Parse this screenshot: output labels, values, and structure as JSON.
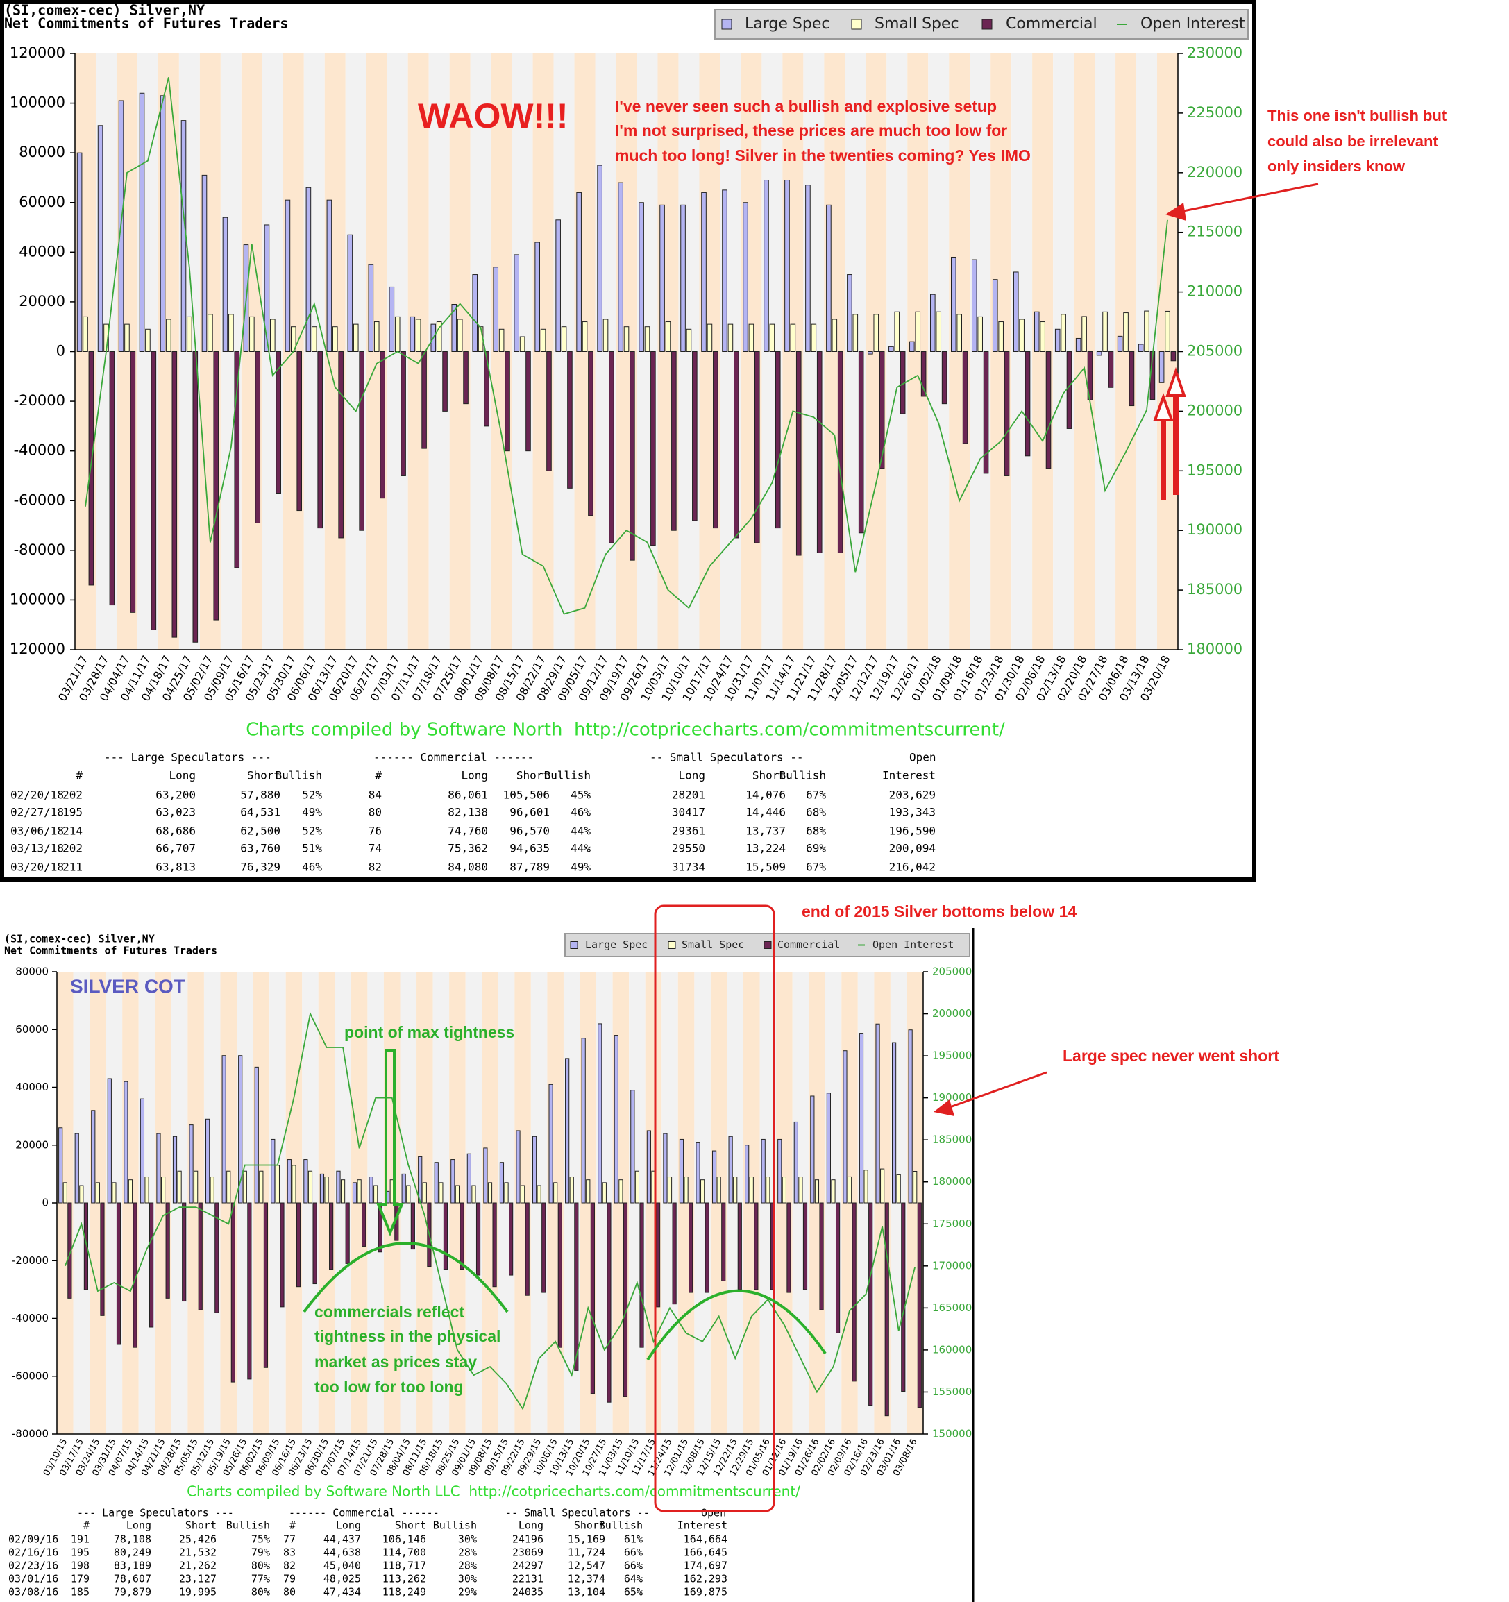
{
  "chart_data": [
    {
      "type": "bar",
      "title": "(SI,comex-cec) Silver,NY",
      "subtitle": "Net Commitments of Futures Traders",
      "categories": [
        "03/21/17",
        "03/28/17",
        "04/04/17",
        "04/11/17",
        "04/18/17",
        "04/25/17",
        "05/02/17",
        "05/09/17",
        "05/16/17",
        "05/23/17",
        "05/30/17",
        "06/06/17",
        "06/13/17",
        "06/20/17",
        "06/27/17",
        "07/03/17",
        "07/11/17",
        "07/18/17",
        "07/25/17",
        "08/01/17",
        "08/08/17",
        "08/15/17",
        "08/22/17",
        "08/29/17",
        "09/05/17",
        "09/12/17",
        "09/19/17",
        "09/26/17",
        "10/03/17",
        "10/10/17",
        "10/17/17",
        "10/24/17",
        "10/31/17",
        "11/07/17",
        "11/14/17",
        "11/21/17",
        "11/28/17",
        "12/05/17",
        "12/12/17",
        "12/19/17",
        "12/26/17",
        "01/02/18",
        "01/09/18",
        "01/16/18",
        "01/23/18",
        "01/30/18",
        "02/06/18",
        "02/13/18",
        "02/20/18",
        "02/27/18",
        "03/06/18",
        "03/13/18",
        "03/20/18"
      ],
      "series": [
        {
          "name": "Large Spec",
          "color": "#b4b4f2",
          "values": [
            80000,
            91000,
            101000,
            104000,
            103000,
            93000,
            71000,
            54000,
            43000,
            51000,
            61000,
            66000,
            61000,
            47000,
            35000,
            26000,
            14000,
            11000,
            19000,
            31000,
            34000,
            39000,
            44000,
            53000,
            64000,
            75000,
            68000,
            60000,
            59000,
            59000,
            64000,
            65000,
            60000,
            69000,
            69000,
            67000,
            59000,
            31000,
            -1000,
            2000,
            4000,
            23000,
            38000,
            37000,
            29000,
            32000,
            16000,
            9000,
            5320,
            -1508,
            6186,
            2947,
            -12516
          ]
        },
        {
          "name": "Small Spec",
          "color": "#ffffcc",
          "values": [
            14000,
            11000,
            11000,
            9000,
            13000,
            14000,
            15000,
            15000,
            14000,
            13000,
            10000,
            10000,
            10000,
            11000,
            12000,
            14000,
            13000,
            12000,
            13000,
            10000,
            9000,
            6000,
            9000,
            10000,
            12000,
            13000,
            10000,
            10000,
            12000,
            9000,
            11000,
            11000,
            11000,
            11000,
            11000,
            11000,
            13000,
            15000,
            15000,
            16000,
            16000,
            16000,
            15000,
            14000,
            12000,
            13000,
            12000,
            15000,
            14125,
            15971,
            15624,
            16326,
            16225
          ]
        },
        {
          "name": "Commercial",
          "color": "#6b2553",
          "values": [
            -94000,
            -102000,
            -105000,
            -112000,
            -115000,
            -117000,
            -108000,
            -87000,
            -69000,
            -57000,
            -64000,
            -71000,
            -75000,
            -72000,
            -59000,
            -50000,
            -39000,
            -24000,
            -21000,
            -30000,
            -40000,
            -40000,
            -48000,
            -55000,
            -66000,
            -77000,
            -84000,
            -78000,
            -72000,
            -68000,
            -71000,
            -75000,
            -77000,
            -71000,
            -82000,
            -81000,
            -81000,
            -73000,
            -47000,
            -25000,
            -18000,
            -21000,
            -37000,
            -49000,
            -50000,
            -42000,
            -47000,
            -31000,
            -19445,
            -14463,
            -21810,
            -19273,
            -3709
          ]
        },
        {
          "name": "Open Interest",
          "color": "#3aa83a",
          "type": "line",
          "axis": "y2",
          "values": [
            192000,
            205000,
            220000,
            221000,
            228000,
            212000,
            189000,
            197000,
            214000,
            203000,
            205000,
            209000,
            202000,
            200000,
            204000,
            205000,
            204000,
            207000,
            209000,
            207000,
            198000,
            188000,
            187000,
            183000,
            183500,
            188000,
            190000,
            189000,
            185000,
            183500,
            187000,
            189000,
            191000,
            194000,
            200000,
            199500,
            198000,
            186500,
            194000,
            202000,
            203000,
            199000,
            192500,
            196000,
            197500,
            200000,
            197500,
            201500,
            203629,
            193343,
            196590,
            200094,
            216042
          ]
        }
      ],
      "ylim": [
        -120000,
        120000
      ],
      "yticks": [
        {
          "value": -120000,
          "label": "120000"
        },
        {
          "value": -100000,
          "label": "100000"
        },
        -80000,
        -60000,
        -40000,
        -20000,
        0,
        20000,
        40000,
        60000,
        80000,
        100000,
        120000
      ],
      "y2lim": [
        180000,
        230000
      ],
      "y2ticks": [
        180000,
        185000,
        190000,
        195000,
        200000,
        205000,
        210000,
        215000,
        220000,
        225000,
        230000
      ],
      "legend": "top-right",
      "footer": "Charts compiled by Software North  http://cotpricecharts.com/commitmentscurrent/",
      "annotations": [
        "WAOW!!!",
        "I've never seen such a bullish and explosive setup",
        "I'm not surprised, these prices are much too low for",
        "much too long! Silver in the twenties coming? Yes IMO",
        "This one isn't bullish but",
        "could also be irrelevant",
        "only insiders know"
      ],
      "table": {
        "groups": [
          "--- Large Speculators ---",
          "------ Commercial ------",
          "-- Small Speculators --",
          "Open"
        ],
        "columns": [
          "#",
          "Long",
          "Short",
          "Bullish",
          "#",
          "Long",
          "Short",
          "Bullish",
          "Long",
          "Short",
          "Bullish",
          "Interest"
        ],
        "rows": [
          [
            "02/20/18",
            "202",
            "63,200",
            "57,880",
            "52%",
            "84",
            "86,061",
            "105,506",
            "45%",
            "28201",
            "14,076",
            "67%",
            "203,629"
          ],
          [
            "02/27/18",
            "195",
            "63,023",
            "64,531",
            "49%",
            "80",
            "82,138",
            "96,601",
            "46%",
            "30417",
            "14,446",
            "68%",
            "193,343"
          ],
          [
            "03/06/18",
            "214",
            "68,686",
            "62,500",
            "52%",
            "76",
            "74,760",
            "96,570",
            "44%",
            "29361",
            "13,737",
            "68%",
            "196,590"
          ],
          [
            "03/13/18",
            "202",
            "66,707",
            "63,760",
            "51%",
            "74",
            "75,362",
            "94,635",
            "44%",
            "29550",
            "13,224",
            "69%",
            "200,094"
          ],
          [
            "03/20/18",
            "211",
            "63,813",
            "76,329",
            "46%",
            "82",
            "84,080",
            "87,789",
            "49%",
            "31734",
            "15,509",
            "67%",
            "216,042"
          ]
        ]
      }
    },
    {
      "type": "bar",
      "title": "(SI,comex-cec) Silver,NY",
      "subtitle": "Net Commitments of Futures Traders",
      "categories": [
        "03/10/15",
        "03/17/15",
        "03/24/15",
        "03/31/15",
        "04/07/15",
        "04/14/15",
        "04/21/15",
        "04/28/15",
        "05/05/15",
        "05/12/15",
        "05/19/15",
        "05/26/15",
        "06/02/15",
        "06/09/15",
        "06/16/15",
        "06/23/15",
        "06/30/15",
        "07/07/15",
        "07/14/15",
        "07/21/15",
        "07/28/15",
        "08/04/15",
        "08/11/15",
        "08/18/15",
        "08/25/15",
        "09/01/15",
        "09/08/15",
        "09/15/15",
        "09/22/15",
        "09/29/15",
        "10/06/15",
        "10/13/15",
        "10/20/15",
        "10/27/15",
        "11/03/15",
        "11/10/15",
        "11/17/15",
        "11/24/15",
        "12/01/15",
        "12/08/15",
        "12/15/15",
        "12/22/15",
        "12/29/15",
        "01/05/16",
        "01/12/16",
        "01/19/16",
        "01/26/16",
        "02/02/16",
        "02/09/16",
        "02/16/16",
        "02/23/16",
        "03/01/16",
        "03/08/16"
      ],
      "series": [
        {
          "name": "Large Spec",
          "color": "#b4b4f2",
          "values": [
            26000,
            24000,
            32000,
            43000,
            42000,
            36000,
            24000,
            23000,
            27000,
            29000,
            51000,
            51000,
            47000,
            22000,
            15000,
            15000,
            10000,
            11000,
            7000,
            9000,
            4000,
            10000,
            16000,
            14000,
            15000,
            17000,
            19000,
            14000,
            25000,
            23000,
            41000,
            50000,
            57000,
            62000,
            58000,
            39000,
            25000,
            24000,
            22000,
            21000,
            18000,
            23000,
            20000,
            22000,
            22000,
            28000,
            37000,
            38000,
            52682,
            58717,
            61927,
            55480,
            59884
          ]
        },
        {
          "name": "Small Spec",
          "color": "#ffffcc",
          "values": [
            7000,
            6000,
            7000,
            7000,
            8000,
            9000,
            9000,
            11000,
            11000,
            9000,
            11000,
            11000,
            11000,
            13000,
            13000,
            11000,
            9000,
            8000,
            8000,
            6000,
            8000,
            6000,
            7000,
            7000,
            6000,
            6000,
            7000,
            7000,
            6000,
            6000,
            7000,
            9000,
            8000,
            7000,
            8000,
            11000,
            11000,
            9000,
            9000,
            8000,
            9000,
            9000,
            9000,
            9000,
            9000,
            9000,
            8000,
            8000,
            9027,
            11345,
            11750,
            9757,
            10931
          ]
        },
        {
          "name": "Commercial",
          "color": "#6b2553",
          "values": [
            -33000,
            -30000,
            -39000,
            -49000,
            -50000,
            -43000,
            -33000,
            -34000,
            -37000,
            -38000,
            -62000,
            -61000,
            -57000,
            -36000,
            -29000,
            -28000,
            -23000,
            -21000,
            -15000,
            -17000,
            -13000,
            -16000,
            -22000,
            -23000,
            -23000,
            -25000,
            -29000,
            -25000,
            -32000,
            -31000,
            -50000,
            -58000,
            -66000,
            -69000,
            -67000,
            -50000,
            -36000,
            -35000,
            -31000,
            -31000,
            -27000,
            -30000,
            -30000,
            -30000,
            -31000,
            -30000,
            -37000,
            -45000,
            -61709,
            -70062,
            -73677,
            -65237,
            -70815
          ]
        },
        {
          "name": "Open Interest",
          "color": "#3aa83a",
          "type": "line",
          "axis": "y2",
          "values": [
            170000,
            175000,
            167000,
            168000,
            167000,
            172000,
            176000,
            177000,
            177000,
            176000,
            175000,
            182000,
            182000,
            182000,
            190000,
            200000,
            196000,
            196000,
            184000,
            190000,
            190000,
            182000,
            176000,
            168000,
            160000,
            157000,
            158000,
            156000,
            153000,
            159000,
            161000,
            157000,
            165000,
            160000,
            163000,
            168000,
            161000,
            165000,
            162000,
            161000,
            164000,
            159000,
            164000,
            166000,
            163000,
            159000,
            155000,
            158000,
            164664,
            166645,
            174697,
            162293,
            169875
          ]
        }
      ],
      "ylim": [
        -80000,
        80000
      ],
      "yticks": [
        -80000,
        -60000,
        -40000,
        -20000,
        0,
        20000,
        40000,
        60000,
        80000
      ],
      "y2lim": [
        150000,
        205000
      ],
      "y2ticks": [
        150000,
        155000,
        160000,
        165000,
        170000,
        175000,
        180000,
        185000,
        190000,
        195000,
        200000,
        205000
      ],
      "legend": "top-right",
      "footer": "Charts compiled by Software North LLC  http://cotpricecharts.com/commitmentscurrent/",
      "annotations": [
        "SILVER COT",
        "point of max tightness",
        "commercials reflect",
        "tightness in the physical",
        "market as prices stay",
        "too low for too long",
        "end of 2015 Silver bottoms below 14",
        "Large spec never went short"
      ],
      "table": {
        "groups": [
          "--- Large Speculators ---",
          "------ Commercial ------",
          "-- Small Speculators --",
          "Open"
        ],
        "columns": [
          "#",
          "Long",
          "Short",
          "Bullish",
          "#",
          "Long",
          "Short",
          "Bullish",
          "Long",
          "Short",
          "Bullish",
          "Interest"
        ],
        "rows": [
          [
            "02/09/16",
            "191",
            "78,108",
            "25,426",
            "75%",
            "77",
            "44,437",
            "106,146",
            "30%",
            "24196",
            "15,169",
            "61%",
            "164,664"
          ],
          [
            "02/16/16",
            "195",
            "80,249",
            "21,532",
            "79%",
            "83",
            "44,638",
            "114,700",
            "28%",
            "23069",
            "11,724",
            "66%",
            "166,645"
          ],
          [
            "02/23/16",
            "198",
            "83,189",
            "21,262",
            "80%",
            "82",
            "45,040",
            "118,717",
            "28%",
            "24297",
            "12,547",
            "66%",
            "174,697"
          ],
          [
            "03/01/16",
            "179",
            "78,607",
            "23,127",
            "77%",
            "79",
            "48,025",
            "113,262",
            "30%",
            "22131",
            "12,374",
            "64%",
            "162,293"
          ],
          [
            "03/08/16",
            "185",
            "79,879",
            "19,995",
            "80%",
            "80",
            "47,434",
            "118,249",
            "29%",
            "24035",
            "13,104",
            "65%",
            "169,875"
          ]
        ]
      }
    }
  ]
}
